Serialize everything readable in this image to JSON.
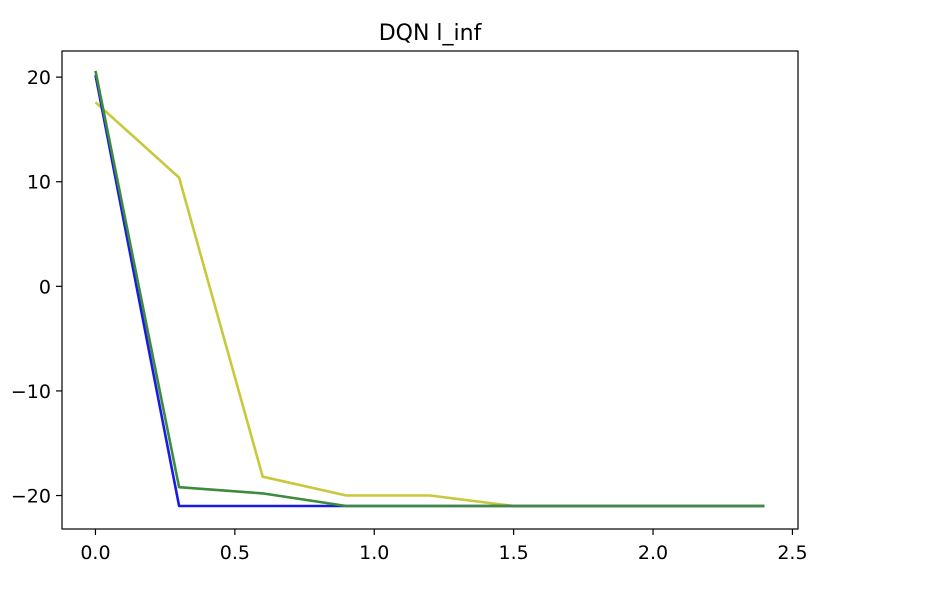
{
  "chart_data": {
    "type": "line",
    "title": "DQN l_inf",
    "xlabel": "",
    "ylabel": "",
    "xlim": [
      -0.12,
      2.52
    ],
    "ylim": [
      -23.2,
      22.5
    ],
    "x_ticks": [
      0.0,
      0.5,
      1.0,
      1.5,
      2.0,
      2.5
    ],
    "x_tick_labels": [
      "0.0",
      "0.5",
      "1.0",
      "1.5",
      "2.0",
      "2.5"
    ],
    "y_ticks": [
      20,
      10,
      0,
      -10,
      -20
    ],
    "y_tick_labels": [
      "20",
      "10",
      "0",
      "−10",
      "−20"
    ],
    "grid": false,
    "legend": "none",
    "series": [
      {
        "color": "#c8c83c",
        "x": [
          0.0,
          0.3,
          0.6,
          0.9,
          1.2,
          1.5,
          1.8,
          2.1,
          2.4
        ],
        "y": [
          17.6,
          10.4,
          -18.2,
          -20.0,
          -20.0,
          -21.0,
          -21.0,
          -21.0,
          -21.0
        ]
      },
      {
        "color": "#1a1ae6",
        "x": [
          0.0,
          0.3,
          0.6,
          0.9,
          1.2,
          1.5,
          1.8,
          2.1,
          2.4
        ],
        "y": [
          20.2,
          -21.0,
          -21.0,
          -21.0,
          -21.0,
          -21.0,
          -21.0,
          -21.0,
          -21.0
        ]
      },
      {
        "color": "#3c8c3c",
        "x": [
          0.0,
          0.3,
          0.6,
          0.9,
          1.2,
          1.5,
          1.8,
          2.1,
          2.4
        ],
        "y": [
          20.6,
          -19.2,
          -19.8,
          -21.0,
          -21.0,
          -21.0,
          -21.0,
          -21.0,
          -21.0
        ]
      }
    ]
  }
}
